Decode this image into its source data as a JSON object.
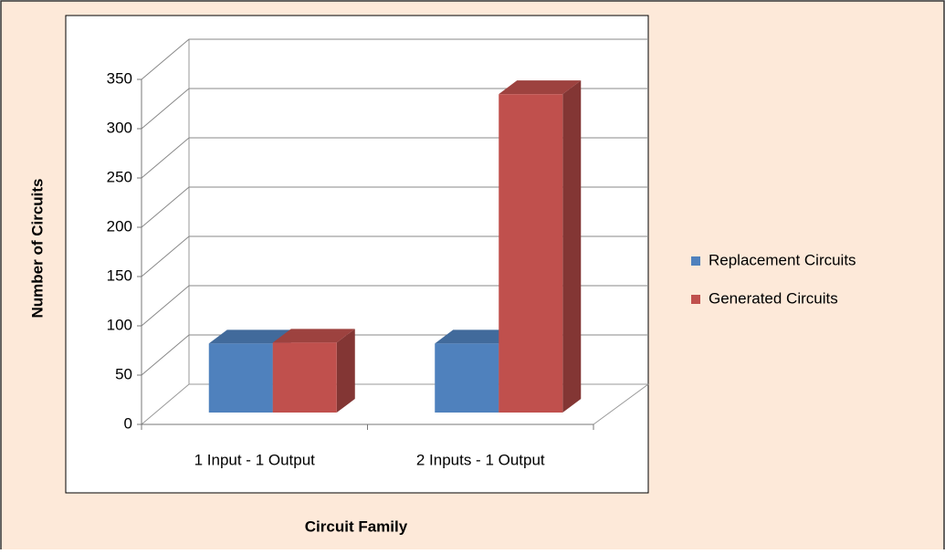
{
  "chart_data": {
    "type": "bar3d",
    "categories": [
      "1 Input - 1 Output",
      "2 Inputs - 1 Output"
    ],
    "series": [
      {
        "name": "Replacement Circuits",
        "color": "#4f81bd",
        "values": [
          70,
          70
        ]
      },
      {
        "name": "Generated Circuits",
        "color": "#c0504d",
        "values": [
          71,
          323
        ]
      }
    ],
    "x_label": "Circuit Family",
    "y_label": "Number of Circuits",
    "ylim": [
      0,
      350
    ],
    "yticks": [
      0,
      50,
      100,
      150,
      200,
      250,
      300,
      350
    ],
    "grid": true,
    "legend": "right"
  }
}
